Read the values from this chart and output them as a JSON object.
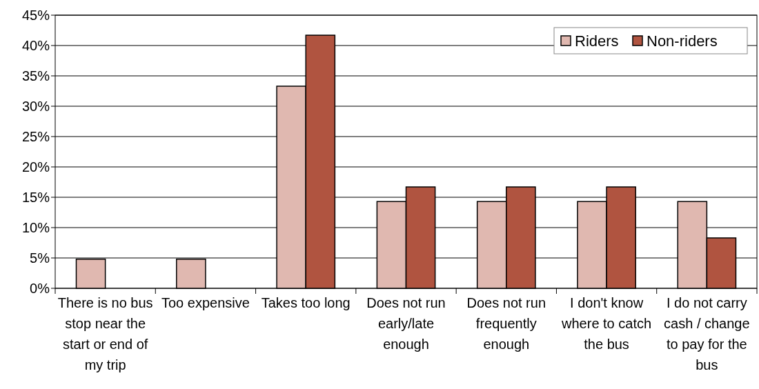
{
  "chart_data": {
    "type": "bar",
    "categories": [
      "There is no bus stop near the start or end of my trip",
      "Too expensive",
      "Takes too long",
      "Does not run early/late enough",
      "Does not run frequently enough",
      "I don't know where to catch the bus",
      "I do not carry cash / change to pay for the bus"
    ],
    "series": [
      {
        "name": "Riders",
        "color": "#e0b8b0",
        "values": [
          4.8,
          4.8,
          33.3,
          14.3,
          14.3,
          14.3,
          14.3
        ]
      },
      {
        "name": "Non-riders",
        "color": "#b05440",
        "values": [
          0,
          0,
          41.7,
          16.7,
          16.7,
          16.7,
          8.3
        ]
      }
    ],
    "ylim": [
      0,
      45
    ],
    "yticks": [
      {
        "value": 0,
        "label": "0%"
      },
      {
        "value": 5,
        "label": "5%"
      },
      {
        "value": 10,
        "label": "10%"
      },
      {
        "value": 15,
        "label": "15%"
      },
      {
        "value": 20,
        "label": "20%"
      },
      {
        "value": 25,
        "label": "25%"
      },
      {
        "value": 30,
        "label": "30%"
      },
      {
        "value": 35,
        "label": "35%"
      },
      {
        "value": 40,
        "label": "40%"
      },
      {
        "value": 45,
        "label": "45%"
      }
    ],
    "grid": "y",
    "legend": "top right"
  }
}
